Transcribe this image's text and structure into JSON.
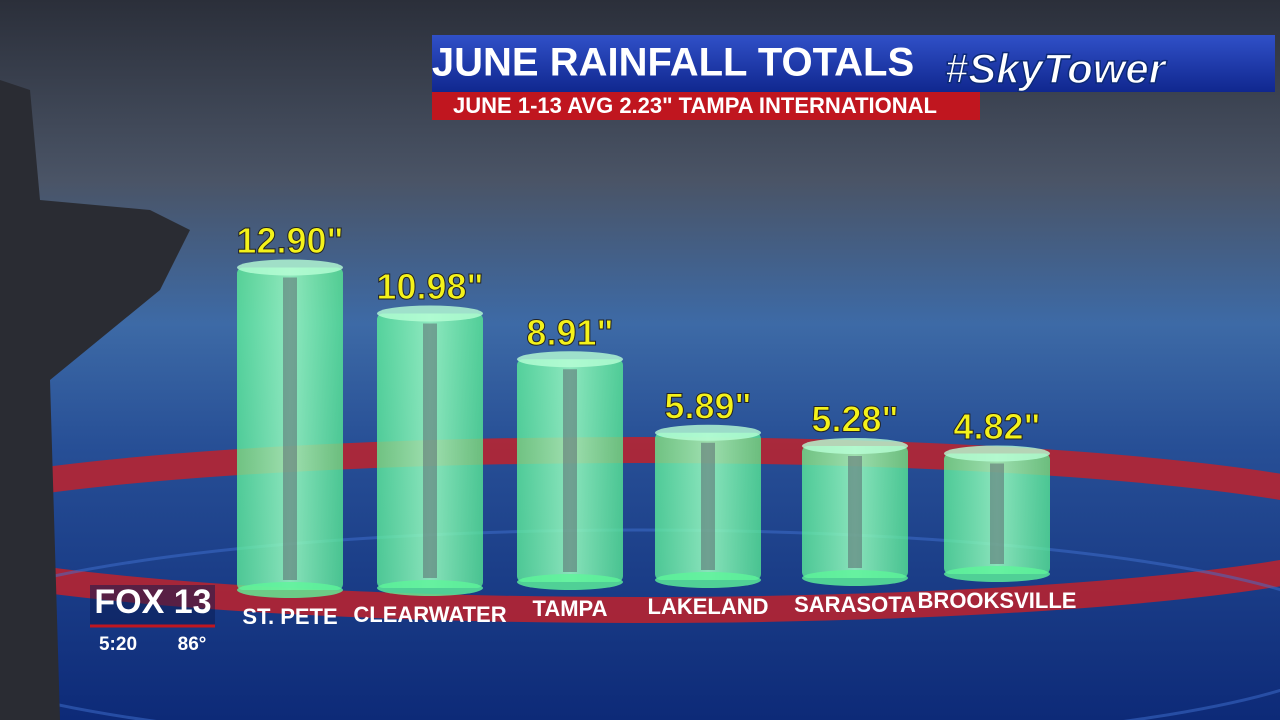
{
  "chart_data": {
    "type": "bar",
    "title": "JUNE RAINFALL TOTALS",
    "subtitle": "JUNE 1-13 AVG 2.23\" TAMPA INTERNATIONAL",
    "categories": [
      "ST. PETE",
      "CLEARWATER",
      "TAMPA",
      "LAKELAND",
      "SARASOTA",
      "BROOKSVILLE"
    ],
    "values": [
      12.9,
      10.98,
      8.91,
      5.89,
      5.28,
      4.82
    ],
    "value_labels": [
      "12.90\"",
      "10.98\"",
      "8.91\"",
      "5.89\"",
      "5.28\"",
      "4.82\""
    ],
    "color": "#7dffb0"
  },
  "branding": {
    "show_logo": "#SkyTower",
    "station": "FOX 13",
    "time": "5:20",
    "temperature": "86°"
  }
}
